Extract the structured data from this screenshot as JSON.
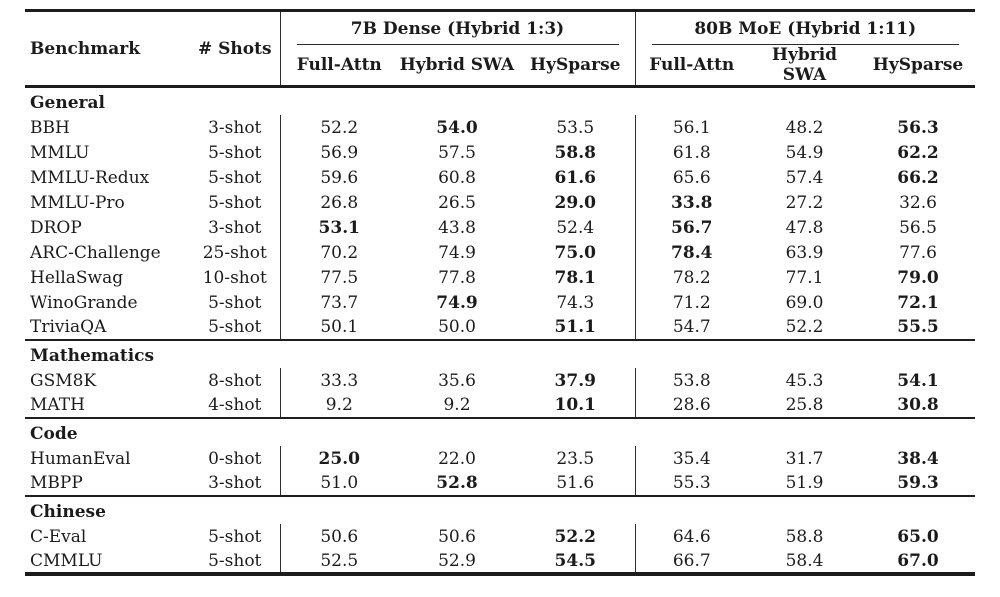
{
  "table": {
    "header": {
      "benchmark": "Benchmark",
      "shots": "# Shots"
    },
    "groups": [
      {
        "label": "7B Dense (Hybrid 1:3)",
        "cols": [
          "Full-Attn",
          "Hybrid SWA",
          "HySparse"
        ]
      },
      {
        "label": "80B MoE (Hybrid 1:11)",
        "cols": [
          "Full-Attn",
          "Hybrid SWA",
          "HySparse"
        ]
      }
    ],
    "sections": [
      {
        "name": "General",
        "rows": [
          {
            "benchmark": "BBH",
            "shots": "3-shot",
            "values": [
              "52.2",
              "54.0",
              "53.5",
              "56.1",
              "48.2",
              "56.3"
            ],
            "bold": [
              1,
              5
            ]
          },
          {
            "benchmark": "MMLU",
            "shots": "5-shot",
            "values": [
              "56.9",
              "57.5",
              "58.8",
              "61.8",
              "54.9",
              "62.2"
            ],
            "bold": [
              2,
              5
            ]
          },
          {
            "benchmark": "MMLU-Redux",
            "shots": "5-shot",
            "values": [
              "59.6",
              "60.8",
              "61.6",
              "65.6",
              "57.4",
              "66.2"
            ],
            "bold": [
              2,
              5
            ]
          },
          {
            "benchmark": "MMLU-Pro",
            "shots": "5-shot",
            "values": [
              "26.8",
              "26.5",
              "29.0",
              "33.8",
              "27.2",
              "32.6"
            ],
            "bold": [
              2,
              3
            ]
          },
          {
            "benchmark": "DROP",
            "shots": "3-shot",
            "values": [
              "53.1",
              "43.8",
              "52.4",
              "56.7",
              "47.8",
              "56.5"
            ],
            "bold": [
              0,
              3
            ]
          },
          {
            "benchmark": "ARC-Challenge",
            "shots": "25-shot",
            "values": [
              "70.2",
              "74.9",
              "75.0",
              "78.4",
              "63.9",
              "77.6"
            ],
            "bold": [
              2,
              3
            ]
          },
          {
            "benchmark": "HellaSwag",
            "shots": "10-shot",
            "values": [
              "77.5",
              "77.8",
              "78.1",
              "78.2",
              "77.1",
              "79.0"
            ],
            "bold": [
              2,
              5
            ]
          },
          {
            "benchmark": "WinoGrande",
            "shots": "5-shot",
            "values": [
              "73.7",
              "74.9",
              "74.3",
              "71.2",
              "69.0",
              "72.1"
            ],
            "bold": [
              1,
              5
            ]
          },
          {
            "benchmark": "TriviaQA",
            "shots": "5-shot",
            "values": [
              "50.1",
              "50.0",
              "51.1",
              "54.7",
              "52.2",
              "55.5"
            ],
            "bold": [
              2,
              5
            ]
          }
        ]
      },
      {
        "name": "Mathematics",
        "rows": [
          {
            "benchmark": "GSM8K",
            "shots": "8-shot",
            "values": [
              "33.3",
              "35.6",
              "37.9",
              "53.8",
              "45.3",
              "54.1"
            ],
            "bold": [
              2,
              5
            ]
          },
          {
            "benchmark": "MATH",
            "shots": "4-shot",
            "values": [
              "9.2",
              "9.2",
              "10.1",
              "28.6",
              "25.8",
              "30.8"
            ],
            "bold": [
              2,
              5
            ]
          }
        ]
      },
      {
        "name": "Code",
        "rows": [
          {
            "benchmark": "HumanEval",
            "shots": "0-shot",
            "values": [
              "25.0",
              "22.0",
              "23.5",
              "35.4",
              "31.7",
              "38.4"
            ],
            "bold": [
              0,
              5
            ]
          },
          {
            "benchmark": "MBPP",
            "shots": "3-shot",
            "values": [
              "51.0",
              "52.8",
              "51.6",
              "55.3",
              "51.9",
              "59.3"
            ],
            "bold": [
              1,
              5
            ]
          }
        ]
      },
      {
        "name": "Chinese",
        "rows": [
          {
            "benchmark": "C-Eval",
            "shots": "5-shot",
            "values": [
              "50.6",
              "50.6",
              "52.2",
              "64.6",
              "58.8",
              "65.0"
            ],
            "bold": [
              2,
              5
            ]
          },
          {
            "benchmark": "CMMLU",
            "shots": "5-shot",
            "values": [
              "52.5",
              "52.9",
              "54.5",
              "66.7",
              "58.4",
              "67.0"
            ],
            "bold": [
              2,
              5
            ]
          }
        ]
      }
    ]
  }
}
